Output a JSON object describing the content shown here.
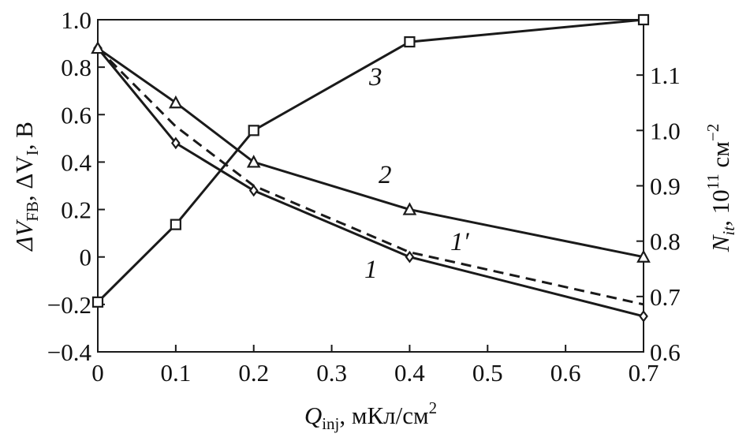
{
  "chart_data": {
    "type": "line",
    "x": [
      0,
      0.1,
      0.2,
      0.4,
      0.7
    ],
    "xlim": [
      0,
      0.7
    ],
    "xticks": [
      "0",
      "0.1",
      "0.2",
      "0.3",
      "0.4",
      "0.5",
      "0.6",
      "0.7"
    ],
    "xlabel": {
      "main": "Q",
      "sub": "inj",
      "rest": ", мКл/см",
      "sup": "2"
    },
    "ylim_left": [
      -0.4,
      1.0
    ],
    "yticks_left": [
      "1.0",
      "0.8",
      "0.6",
      "0.4",
      "0.2",
      "0",
      "−0.2",
      "−0.4"
    ],
    "ylabel_left": {
      "p1": "ΔV",
      "s1": "FB",
      "p2": ", ΔV",
      "s2": "I",
      "p3": ", В"
    },
    "ylim_right": [
      0.6,
      1.2
    ],
    "yticks_right": [
      "1.1",
      "1.0",
      "0.9",
      "0.8",
      "0.7",
      "0.6"
    ],
    "ylabel_right": {
      "p1": "N",
      "s1": "it",
      "p2": ", 10",
      "sup": "11",
      "p3": " см",
      "sup2": "−2"
    },
    "series": [
      {
        "name": "1",
        "axis": "left",
        "marker": "diamond",
        "style": "solid",
        "values": [
          0.88,
          0.48,
          0.28,
          0.0,
          -0.25
        ]
      },
      {
        "name": "1′",
        "axis": "left",
        "marker": "none",
        "style": "dashed",
        "values": [
          0.88,
          0.55,
          0.3,
          0.02,
          -0.2
        ]
      },
      {
        "name": "2",
        "axis": "left",
        "marker": "triangle",
        "style": "solid",
        "values": [
          0.88,
          0.65,
          0.4,
          0.2,
          0.0
        ]
      },
      {
        "name": "3",
        "axis": "right",
        "marker": "square",
        "style": "solid",
        "values": [
          0.69,
          0.83,
          1.0,
          1.16,
          1.2
        ]
      }
    ],
    "grid": false,
    "legend": "inline curve labels"
  }
}
